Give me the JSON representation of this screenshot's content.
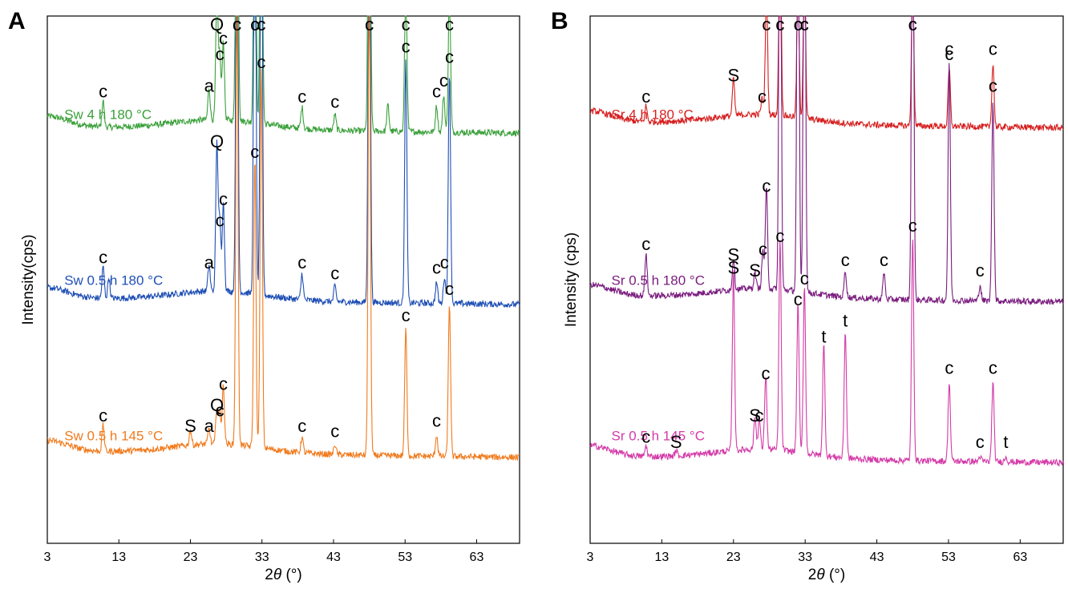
{
  "chart_data": [
    {
      "panel": "A",
      "type": "line",
      "xlabel_prefix": "2",
      "xlabel_theta": "θ",
      "xlabel_suffix": " (°)",
      "ylabel": "Intensity(cps)",
      "xlim": [
        3,
        69
      ],
      "xticks": [
        3,
        13,
        23,
        33,
        43,
        53,
        63
      ],
      "yticks": "none",
      "series": [
        {
          "name": "Sw 4 h 180 °C",
          "color": "#3aa03a",
          "baseline": 0.79,
          "peaks": [
            {
              "x": 10.8,
              "h": 0.05,
              "label": "c"
            },
            {
              "x": 25.6,
              "h": 0.06,
              "label": "a"
            },
            {
              "x": 26.7,
              "h": 0.25,
              "label": "Q"
            },
            {
              "x": 27.1,
              "h": 0.12,
              "label": "c"
            },
            {
              "x": 27.6,
              "h": 0.15,
              "label": "c"
            },
            {
              "x": 29.5,
              "h": 1.0,
              "label": "c"
            },
            {
              "x": 32.0,
              "h": 0.64,
              "label": "c"
            },
            {
              "x": 32.9,
              "h": 0.8,
              "label": "c"
            },
            {
              "x": 38.6,
              "h": 0.04,
              "label": "c"
            },
            {
              "x": 43.2,
              "h": 0.03,
              "label": "c"
            },
            {
              "x": 48.0,
              "h": 0.97,
              "label": "c"
            },
            {
              "x": 50.6,
              "h": 0.05,
              "label": ""
            },
            {
              "x": 53.1,
              "h": 0.3,
              "label": "c"
            },
            {
              "x": 57.4,
              "h": 0.05,
              "label": "c"
            },
            {
              "x": 58.4,
              "h": 0.07,
              "label": "c"
            },
            {
              "x": 59.2,
              "h": 0.27,
              "label": "c"
            }
          ]
        },
        {
          "name": "Sw 0.5 h 180 °C",
          "color": "#1f4fb5",
          "baseline": 0.465,
          "peaks": [
            {
              "x": 10.8,
              "h": 0.06,
              "label": "c"
            },
            {
              "x": 11.6,
              "h": 0.04,
              "label": ""
            },
            {
              "x": 25.6,
              "h": 0.05,
              "label": "a"
            },
            {
              "x": 26.7,
              "h": 0.28,
              "label": "Q"
            },
            {
              "x": 27.1,
              "h": 0.13,
              "label": "c"
            },
            {
              "x": 27.6,
              "h": 0.17,
              "label": "c"
            },
            {
              "x": 29.5,
              "h": 0.88,
              "label": "c"
            },
            {
              "x": 32.0,
              "h": 0.93,
              "label": "c"
            },
            {
              "x": 32.9,
              "h": 0.93,
              "label": "c"
            },
            {
              "x": 38.6,
              "h": 0.05,
              "label": "c"
            },
            {
              "x": 43.2,
              "h": 0.03,
              "label": "c"
            },
            {
              "x": 48.0,
              "h": 0.93,
              "label": "c"
            },
            {
              "x": 53.1,
              "h": 0.46,
              "label": "c"
            },
            {
              "x": 57.4,
              "h": 0.04,
              "label": "c"
            },
            {
              "x": 58.5,
              "h": 0.05,
              "label": "c"
            },
            {
              "x": 59.2,
              "h": 0.44,
              "label": "c"
            }
          ]
        },
        {
          "name": "Sw 0.5 h 145 °C",
          "color": "#f07b1e",
          "baseline": 0.175,
          "peaks": [
            {
              "x": 10.8,
              "h": 0.05,
              "label": "c"
            },
            {
              "x": 23.0,
              "h": 0.03,
              "label": "S"
            },
            {
              "x": 25.6,
              "h": 0.03,
              "label": "a"
            },
            {
              "x": 26.7,
              "h": 0.07,
              "label": "Q"
            },
            {
              "x": 27.1,
              "h": 0.06,
              "label": "c"
            },
            {
              "x": 27.6,
              "h": 0.11,
              "label": "c"
            },
            {
              "x": 29.5,
              "h": 0.85,
              "label": "c"
            },
            {
              "x": 32.0,
              "h": 0.55,
              "label": "c"
            },
            {
              "x": 32.9,
              "h": 0.72,
              "label": "c"
            },
            {
              "x": 38.6,
              "h": 0.03,
              "label": "c"
            },
            {
              "x": 43.2,
              "h": 0.02,
              "label": "c"
            },
            {
              "x": 48.0,
              "h": 0.92,
              "label": "c"
            },
            {
              "x": 53.1,
              "h": 0.24,
              "label": "c"
            },
            {
              "x": 57.4,
              "h": 0.04,
              "label": "c"
            },
            {
              "x": 59.2,
              "h": 0.29,
              "label": "c"
            }
          ]
        }
      ]
    },
    {
      "panel": "B",
      "type": "line",
      "xlabel_prefix": "2",
      "xlabel_theta": "θ",
      "xlabel_suffix": " (°)",
      "ylabel": "Intensity (cps)",
      "xlim": [
        3,
        69
      ],
      "xticks": [
        3,
        13,
        23,
        33,
        43,
        53,
        63
      ],
      "yticks": "none",
      "series": [
        {
          "name": "Sr 4 h 180 °C",
          "color": "#d62020",
          "baseline": 0.8,
          "peaks": [
            {
              "x": 10.8,
              "h": 0.03,
              "label": "c"
            },
            {
              "x": 23.0,
              "h": 0.07,
              "label": "S"
            },
            {
              "x": 27.0,
              "h": 0.03,
              "label": "c"
            },
            {
              "x": 27.6,
              "h": 0.24,
              "label": "c"
            },
            {
              "x": 29.5,
              "h": 0.41,
              "label": "c"
            },
            {
              "x": 32.0,
              "h": 0.27,
              "label": "c"
            },
            {
              "x": 32.9,
              "h": 0.3,
              "label": "c"
            },
            {
              "x": 48.0,
              "h": 0.3,
              "label": "c"
            },
            {
              "x": 53.1,
              "h": 0.11,
              "label": "c"
            },
            {
              "x": 59.2,
              "h": 0.12,
              "label": "c"
            }
          ]
        },
        {
          "name": "Sr 0.5 h 180 °C",
          "color": "#7a1c7e",
          "baseline": 0.47,
          "peaks": [
            {
              "x": 10.8,
              "h": 0.08,
              "label": "c"
            },
            {
              "x": 23.0,
              "h": 0.06,
              "label": "S"
            },
            {
              "x": 26.0,
              "h": 0.03,
              "label": "S"
            },
            {
              "x": 27.1,
              "h": 0.07,
              "label": "c"
            },
            {
              "x": 27.6,
              "h": 0.19,
              "label": "c"
            },
            {
              "x": 29.5,
              "h": 0.93,
              "label": "c"
            },
            {
              "x": 32.0,
              "h": 0.93,
              "label": "c"
            },
            {
              "x": 32.9,
              "h": 0.93,
              "label": "c"
            },
            {
              "x": 38.6,
              "h": 0.05,
              "label": "c"
            },
            {
              "x": 44.0,
              "h": 0.05,
              "label": "c"
            },
            {
              "x": 48.0,
              "h": 0.93,
              "label": "c"
            },
            {
              "x": 53.1,
              "h": 0.45,
              "label": "c"
            },
            {
              "x": 57.4,
              "h": 0.03,
              "label": "c"
            },
            {
              "x": 59.2,
              "h": 0.38,
              "label": "c"
            }
          ]
        },
        {
          "name": "Sr 0.5 h 145 °C",
          "color": "#d43ba8",
          "baseline": 0.165,
          "peaks": [
            {
              "x": 10.8,
              "h": 0.02,
              "label": "c"
            },
            {
              "x": 15.0,
              "h": 0.01,
              "label": "S"
            },
            {
              "x": 23.0,
              "h": 0.34,
              "label": "S"
            },
            {
              "x": 26.0,
              "h": 0.06,
              "label": "S"
            },
            {
              "x": 26.6,
              "h": 0.06,
              "label": "c"
            },
            {
              "x": 27.5,
              "h": 0.14,
              "label": "c"
            },
            {
              "x": 29.5,
              "h": 0.4,
              "label": "c"
            },
            {
              "x": 32.0,
              "h": 0.28,
              "label": "c"
            },
            {
              "x": 32.9,
              "h": 0.32,
              "label": "c"
            },
            {
              "x": 35.6,
              "h": 0.21,
              "label": "t"
            },
            {
              "x": 38.6,
              "h": 0.24,
              "label": "t"
            },
            {
              "x": 48.0,
              "h": 0.42,
              "label": "c"
            },
            {
              "x": 53.1,
              "h": 0.15,
              "label": "c"
            },
            {
              "x": 57.4,
              "h": 0.01,
              "label": "c"
            },
            {
              "x": 59.2,
              "h": 0.15,
              "label": "c"
            },
            {
              "x": 61.0,
              "h": 0.01,
              "label": "t"
            }
          ]
        }
      ]
    }
  ]
}
